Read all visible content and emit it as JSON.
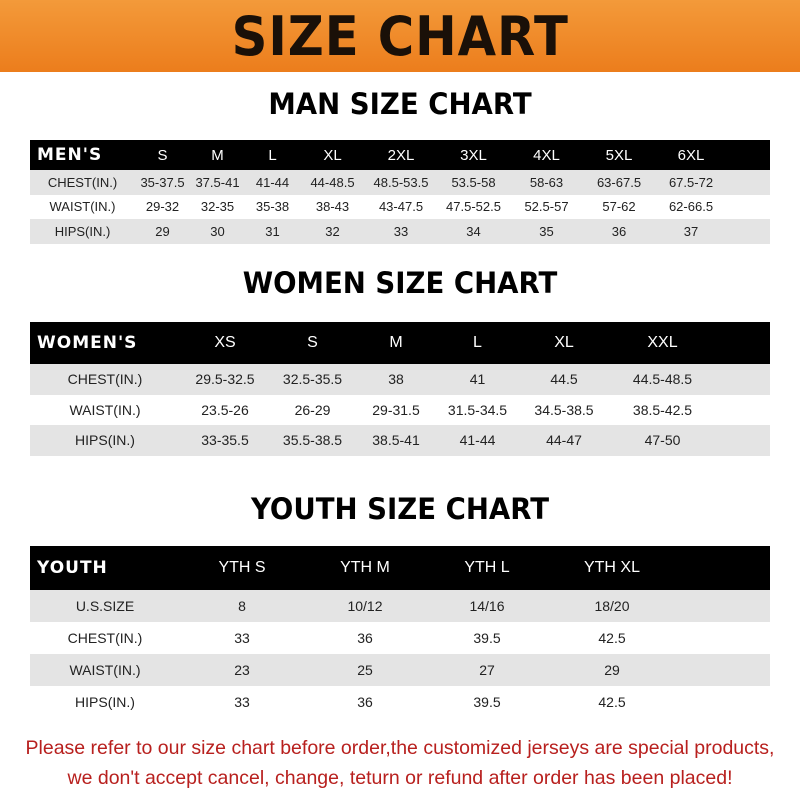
{
  "title": "SIZE CHART",
  "colors": {
    "banner": "#ec7d1c",
    "header": "#000000",
    "stripe": "#e4e4e4",
    "note": "#b8201e"
  },
  "men": {
    "title": "MAN SIZE CHART",
    "header": [
      "MEN'S",
      "S",
      "M",
      "L",
      "XL",
      "2XL",
      "3XL",
      "4XL",
      "5XL",
      "6XL"
    ],
    "rows": [
      [
        "CHEST(IN.)",
        "35-37.5",
        "37.5-41",
        "41-44",
        "44-48.5",
        "48.5-53.5",
        "53.5-58",
        "58-63",
        "63-67.5",
        "67.5-72"
      ],
      [
        "WAIST(IN.)",
        "29-32",
        "32-35",
        "35-38",
        "38-43",
        "43-47.5",
        "47.5-52.5",
        "52.5-57",
        "57-62",
        "62-66.5"
      ],
      [
        "HIPS(IN.)",
        "29",
        "30",
        "31",
        "32",
        "33",
        "34",
        "35",
        "36",
        "37"
      ]
    ]
  },
  "women": {
    "title": "WOMEN SIZE CHART",
    "header": [
      "WOMEN'S",
      "XS",
      "S",
      "M",
      "L",
      "XL",
      "XXL"
    ],
    "rows": [
      [
        "CHEST(IN.)",
        "29.5-32.5",
        "32.5-35.5",
        "38",
        "41",
        "44.5",
        "44.5-48.5"
      ],
      [
        "WAIST(IN.)",
        "23.5-26",
        "26-29",
        "29-31.5",
        "31.5-34.5",
        "34.5-38.5",
        "38.5-42.5"
      ],
      [
        "HIPS(IN.)",
        "33-35.5",
        "35.5-38.5",
        "38.5-41",
        "41-44",
        "44-47",
        "47-50"
      ]
    ]
  },
  "youth": {
    "title": "YOUTH SIZE CHART",
    "header": [
      "YOUTH",
      "YTH S",
      "YTH M",
      "YTH L",
      "YTH XL"
    ],
    "rows": [
      [
        "U.S.SIZE",
        "8",
        "10/12",
        "14/16",
        "18/20"
      ],
      [
        "CHEST(IN.)",
        "33",
        "36",
        "39.5",
        "42.5"
      ],
      [
        "WAIST(IN.)",
        "23",
        "25",
        "27",
        "29"
      ],
      [
        "HIPS(IN.)",
        "33",
        "36",
        "39.5",
        "42.5"
      ]
    ]
  },
  "note": [
    "Please refer to our size chart before order,the customized jerseys are special products,",
    "we don't accept cancel, change, teturn or refund after order has been placed!"
  ]
}
